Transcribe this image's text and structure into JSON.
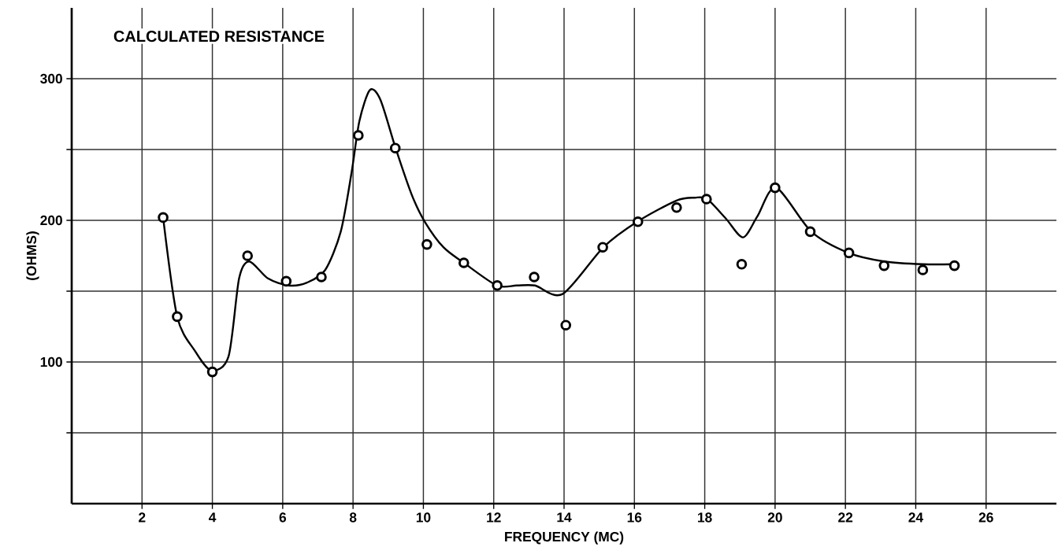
{
  "chart_data": {
    "type": "scatter",
    "title": "CALCULATED RESISTANCE",
    "xlabel": "FREQUENCY  (MC)",
    "ylabel": "(OHMS)",
    "xlim": [
      0,
      28
    ],
    "ylim": [
      0,
      350
    ],
    "xticks": [
      2,
      4,
      6,
      8,
      10,
      12,
      14,
      16,
      18,
      20,
      22,
      24,
      26
    ],
    "yticks": [
      {
        "value": 50,
        "label": null
      },
      100,
      {
        "value": 150,
        "label": null
      },
      200,
      {
        "value": 250,
        "label": null
      },
      300
    ],
    "grid": true,
    "series": [
      {
        "color": "#000000",
        "marker": "circle",
        "x": [
          2.6,
          3.0,
          4.0,
          5.0,
          6.1,
          7.1,
          8.15,
          9.2,
          10.1,
          11.15,
          12.1,
          13.15,
          14.05,
          15.1,
          16.1,
          17.2,
          18.05,
          19.05,
          20.0,
          21.0,
          22.1,
          23.1,
          24.2,
          25.1
        ],
        "values": [
          202,
          132,
          93,
          175,
          157,
          160,
          260,
          251,
          183,
          170,
          154,
          160,
          126,
          181,
          199,
          209,
          215,
          169,
          223,
          192,
          177,
          168,
          165,
          168
        ]
      },
      {
        "type": "line",
        "color": "#000000",
        "line_style": "solid",
        "marker": "none",
        "x": [
          2.6,
          3.0,
          3.5,
          3.97,
          4.46,
          4.76,
          5.05,
          5.58,
          6.17,
          6.69,
          7.21,
          7.65,
          7.96,
          8.18,
          8.48,
          8.78,
          9.21,
          9.67,
          10.04,
          10.57,
          11.15,
          12.09,
          12.65,
          13.17,
          13.96,
          15.12,
          16.08,
          17.2,
          17.72,
          18.07,
          18.61,
          19.09,
          19.5,
          20.03,
          21.03,
          22.09,
          23.1,
          24.21,
          25.08
        ],
        "values": [
          202,
          132,
          108,
          94,
          104,
          159,
          171,
          159,
          154,
          156,
          165,
          192,
          234,
          270,
          292,
          285,
          251,
          218,
          199,
          181,
          170,
          154,
          154,
          154,
          148,
          181,
          199,
          214,
          216,
          215,
          201,
          188,
          203,
          223,
          192,
          177,
          171,
          169,
          169
        ]
      }
    ]
  }
}
